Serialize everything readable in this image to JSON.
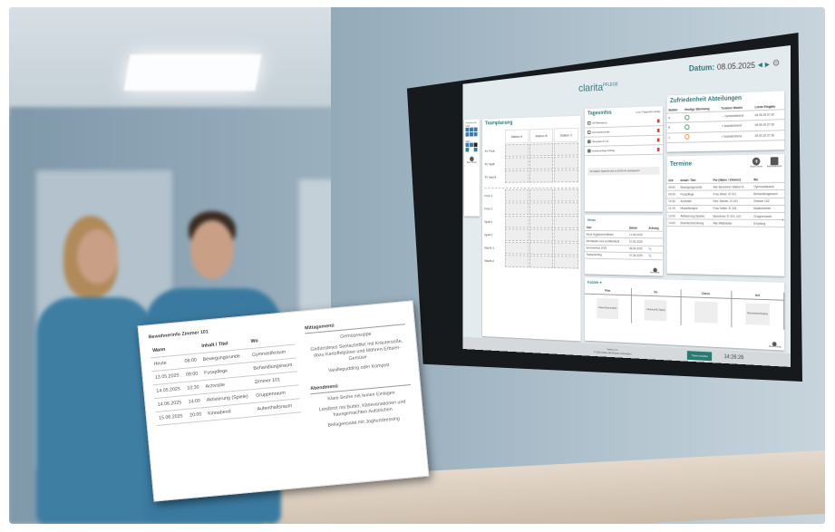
{
  "header": {
    "logo": "clarita",
    "logo_suffix": "PFLEGE",
    "date_label": "Datum:",
    "date": "08.05.2025"
  },
  "sidebar": {
    "title": "Anwesende",
    "group1": "Früh",
    "group2": "Spät",
    "add_label": "Neue Person"
  },
  "teamplanung": {
    "title": "Teamplanung",
    "columns": [
      "Station A",
      "Station B",
      "Station C"
    ],
    "rows_top": [
      "TV Früh",
      "TV Spät",
      "TV Nacht"
    ],
    "rows_bottom": [
      "Früh 1",
      "Früh 2",
      "Spät 1",
      "Spät 2",
      "Nacht 1",
      "Nacht 2"
    ]
  },
  "tagesinfos": {
    "title": "Tagesinfos",
    "note": "2 von 4 Tagesinfos erledigt",
    "items": [
      {
        "label": "GR Bewegung",
        "done": false
      },
      {
        "label": "Vorsorgekontrolle",
        "done": false
      },
      {
        "label": "Übergabe 07:15",
        "done": true
      },
      {
        "label": "Krankenpflege Auftrag",
        "done": true
      }
    ],
    "footer": "Die tägliche Tagesinfo wird um 00:00 Uhr zurückgesetzt"
  },
  "news": {
    "title": "News",
    "columns": [
      "Titel",
      "Datum",
      "Anhang"
    ],
    "rows": [
      [
        "Neue Hygienerichtlinien",
        "12.05.2025",
        ""
      ],
      [
        "Dienstplan Juni veröffentlicht",
        "10.05.2025",
        ""
      ],
      [
        "Sommerfest 2025",
        "08.05.2025",
        "📎"
      ],
      [
        "Teammeeting",
        "07.05.2025",
        "📎"
      ]
    ],
    "add_label": "Neue News"
  },
  "zufriedenheit": {
    "title": "Zufriedenheit Abteilungen",
    "columns": [
      "Station",
      "Heutige Stimmung",
      "Tendenz Woche",
      "Letzte Eingabe"
    ],
    "rows": [
      {
        "station": "A",
        "mood": "happy",
        "color": "#3aa655",
        "trend": "→ Gleichbleibend",
        "last": "08.05.25 07:30"
      },
      {
        "station": "B",
        "mood": "happy",
        "color": "#3aa655",
        "trend": "↗ Aufwärtstrend",
        "last": "08.05.25 07:30"
      },
      {
        "station": "C",
        "mood": "neutral",
        "color": "#f0902a",
        "trend": "↗ Aufwärtstrend",
        "last": "08.05.25 07:30"
      }
    ]
  },
  "termine": {
    "title": "Termine",
    "new_label": "Neuer Termin",
    "calendar_label": "Kalenderansicht",
    "columns": [
      "Zeit",
      "Inhalt / Titel",
      "Für (Name / Zimmer)",
      "Wo"
    ],
    "rows": [
      [
        "09:00",
        "Bewegungsrunde",
        "Alle Bewohner Station A",
        "Gymnastikraum"
      ],
      [
        "09:00",
        "Fusspflege",
        "Frau Meier, Zi 101",
        "Behandlungsraum"
      ],
      [
        "10:30",
        "Arztvisite",
        "Herr Steiner, Zi 102",
        "Zimmer 102"
      ],
      [
        "11:15",
        "Musiktherapie",
        "Frau Keller, Zi 103",
        "Musikzimmer"
      ],
      [
        "13:00",
        "Aktivierung (Spiele)",
        "Bewohner Zi 101–110",
        "Gruppenraum"
      ],
      [
        "14:00",
        "Brandschutzübung",
        "Alle Mitarbeiter",
        "Empfang"
      ]
    ]
  },
  "kaizen": {
    "title": "Kaizen",
    "columns": [
      "Plan",
      "Do",
      "Check",
      "Act"
    ],
    "cards": [
      "Papier-Dokumentation",
      "Anleitung Mtl. Zugang",
      "",
      "Wunschzettel Eingang"
    ],
    "add_label": "Neuer Eintrag"
  },
  "footer": {
    "version": "Version 1.2",
    "copyright": "© 2025 clarita. Alle Rechte vorbehalten",
    "button": "Ticket erstellen",
    "time": "14:26:26"
  },
  "overlay": {
    "title": "Bewohnerinfo Zimmer 101",
    "columns": [
      "Wann",
      "Inhalt / Titel",
      "Wo"
    ],
    "rows": [
      [
        "Heute",
        "08:00",
        "Bewegungsrunde",
        "Gymnastikraum"
      ],
      [
        "13.05.2025",
        "09:00",
        "Fusspflege",
        "Behandlungsraum"
      ],
      [
        "14.05.2025",
        "10:30",
        "Arztvisite",
        "Zimmer 101"
      ],
      [
        "14.06.2025",
        "14:00",
        "Aktivierung (Spiele)",
        "Gruppenraum"
      ],
      [
        "15.06.2025",
        "20:00",
        "Kinoabend",
        "Aufenthaltsraum"
      ]
    ],
    "lunch_title": "Mittagsmenü",
    "lunch": [
      "Gemüsesuppe",
      "Gedünstetes Seelachsfilet mit Kräutersoße, dazu Kartoffelpüree und Möhren-Erbsen-Gemüse",
      "Vanillepudding oder Kompott"
    ],
    "dinner_title": "Abendmenü",
    "dinner": [
      "Klare Brühe mit feinen Einlagen",
      "Landbrot mit Butter, Käsevariationen und hausgemachten Aufstrichen",
      "Beilagensalat mit Joghurtdressing"
    ]
  },
  "colors": {
    "accent": "#2c7a7b",
    "delete": "#e53935"
  }
}
